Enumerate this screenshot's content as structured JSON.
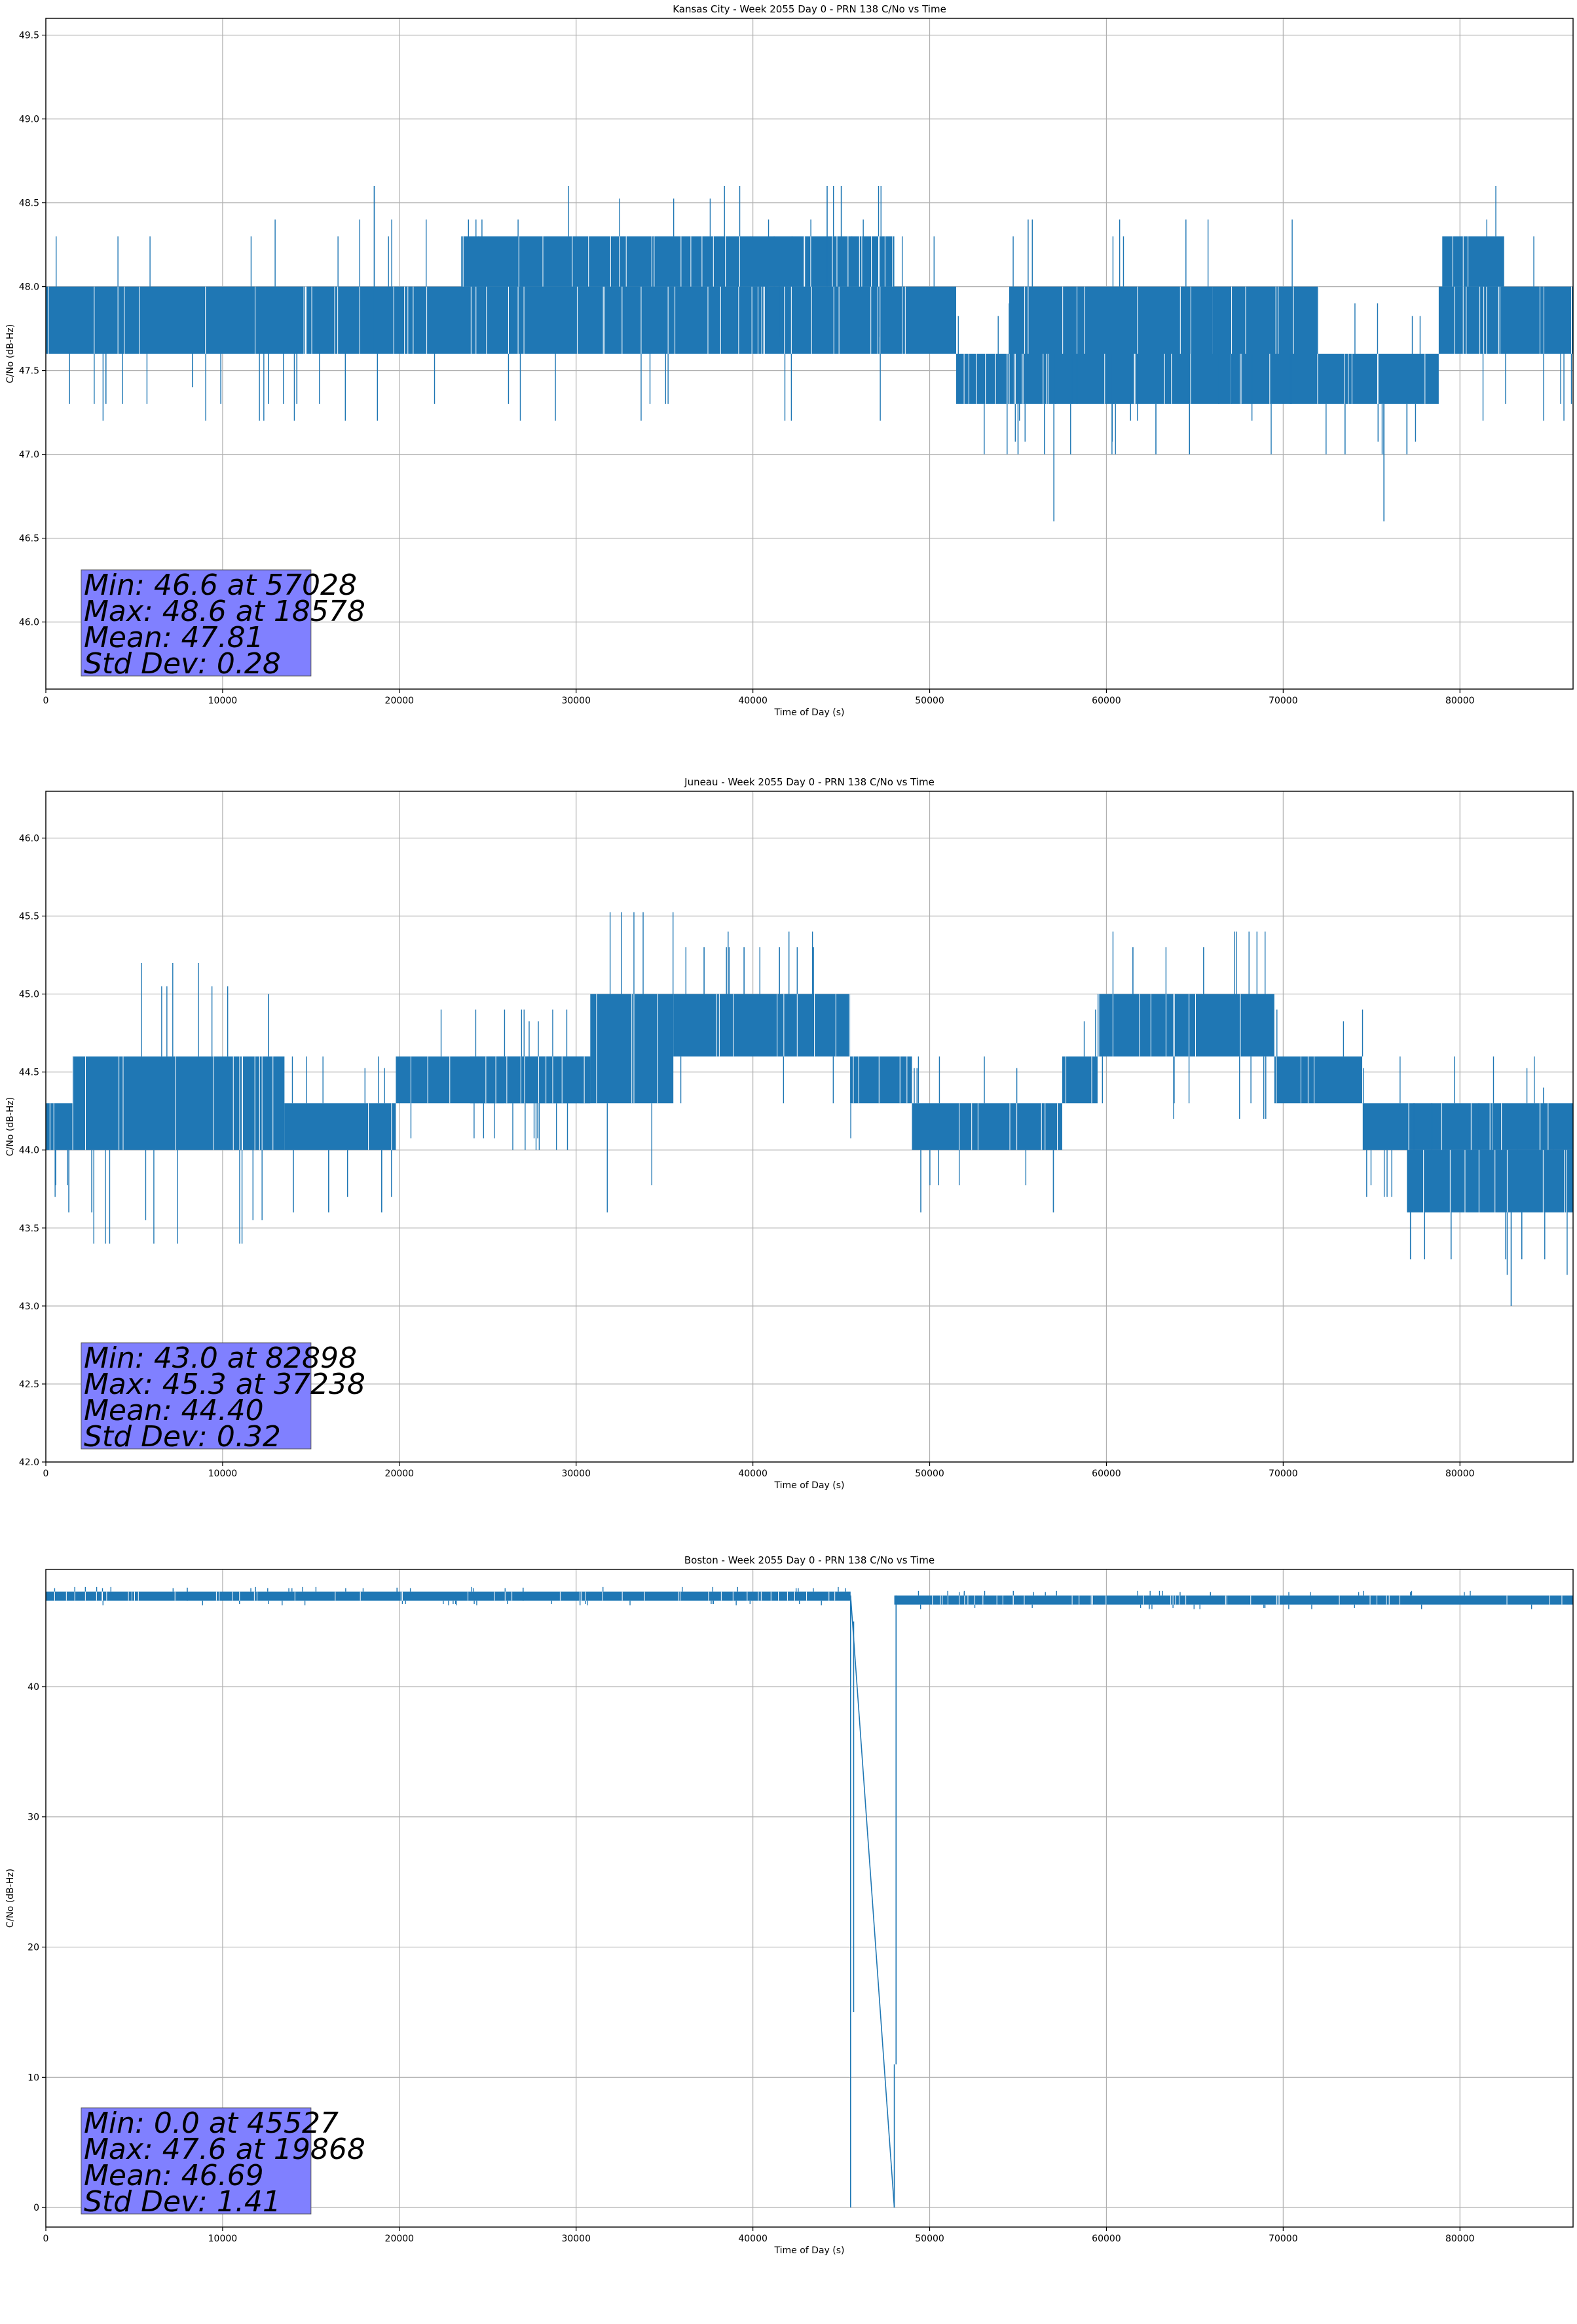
{
  "chart_data": [
    {
      "type": "line",
      "title": "Kansas City - Week 2055 Day 0 - PRN 138 C/No vs Time",
      "xlabel": "Time of Day (s)",
      "ylabel": "C/No (dB-Hz)",
      "xlim": [
        0,
        86400
      ],
      "ylim": [
        45.6,
        49.6
      ],
      "xticks": [
        0,
        10000,
        20000,
        30000,
        40000,
        50000,
        60000,
        70000,
        80000
      ],
      "yticks": [
        46.0,
        46.5,
        47.0,
        47.5,
        48.0,
        48.5,
        49.0,
        49.5
      ],
      "ytick_labels": [
        "46.0",
        "46.5",
        "47.0",
        "47.5",
        "48.0",
        "48.5",
        "49.0",
        "49.5"
      ],
      "grid": true,
      "series_color": "#1f77b4",
      "band_segments": [
        {
          "x": [
            0,
            51500
          ],
          "y": [
            47.6,
            48.0
          ]
        },
        {
          "x": [
            51500,
            78800
          ],
          "y": [
            47.3,
            47.6
          ]
        },
        {
          "x": [
            54500,
            66000
          ],
          "y": [
            47.6,
            48.0
          ]
        },
        {
          "x": [
            66000,
            72000
          ],
          "y": [
            47.6,
            48.0
          ]
        },
        {
          "x": [
            78800,
            86400
          ],
          "y": [
            47.6,
            48.0
          ]
        },
        {
          "x": [
            23500,
            48000
          ],
          "y": [
            48.0,
            48.3
          ]
        },
        {
          "x": [
            79000,
            82500
          ],
          "y": [
            48.0,
            48.3
          ]
        }
      ],
      "spikes": [
        {
          "x": 18578,
          "y": [
            47.6,
            48.6
          ]
        },
        {
          "x": 44200,
          "y": [
            48.0,
            48.6
          ]
        },
        {
          "x": 45000,
          "y": [
            48.0,
            48.6
          ]
        },
        {
          "x": 57028,
          "y": [
            47.3,
            46.6
          ]
        },
        {
          "x": 75700,
          "y": [
            47.3,
            46.6
          ]
        },
        {
          "x": 3400,
          "y": [
            47.6,
            47.3
          ]
        },
        {
          "x": 8300,
          "y": [
            47.6,
            47.4
          ]
        },
        {
          "x": 9900,
          "y": [
            47.6,
            47.3
          ]
        },
        {
          "x": 12600,
          "y": [
            47.6,
            47.3
          ]
        },
        {
          "x": 14200,
          "y": [
            47.6,
            47.3
          ]
        },
        {
          "x": 55000,
          "y": [
            47.3,
            47.0
          ]
        },
        {
          "x": 56500,
          "y": [
            47.3,
            47.0
          ]
        },
        {
          "x": 62800,
          "y": [
            47.3,
            47.0
          ]
        },
        {
          "x": 64700,
          "y": [
            47.3,
            47.0
          ]
        },
        {
          "x": 73500,
          "y": [
            47.3,
            47.0
          ]
        },
        {
          "x": 77000,
          "y": [
            47.3,
            47.0
          ]
        }
      ],
      "stats": [
        "Min: 46.6 at 57028",
        "Max: 48.6 at 18578",
        "Mean: 47.81",
        "Std Dev: 0.28"
      ]
    },
    {
      "type": "line",
      "title": "Juneau - Week 2055 Day 0 - PRN 138 C/No vs Time",
      "xlabel": "Time of Day (s)",
      "ylabel": "C/No (dB-Hz)",
      "xlim": [
        0,
        86400
      ],
      "ylim": [
        42.0,
        46.3
      ],
      "xticks": [
        0,
        10000,
        20000,
        30000,
        40000,
        50000,
        60000,
        70000,
        80000
      ],
      "yticks": [
        42.0,
        42.5,
        43.0,
        43.5,
        44.0,
        44.5,
        45.0,
        45.5,
        46.0
      ],
      "ytick_labels": [
        "42.0",
        "42.5",
        "43.0",
        "43.5",
        "44.0",
        "44.5",
        "45.0",
        "45.5",
        "46.0"
      ],
      "grid": true,
      "series_color": "#1f77b4",
      "band_segments": [
        {
          "x": [
            0,
            1500
          ],
          "y": [
            44.0,
            44.3
          ]
        },
        {
          "x": [
            1500,
            13500
          ],
          "y": [
            44.0,
            44.6
          ]
        },
        {
          "x": [
            13500,
            19800
          ],
          "y": [
            44.0,
            44.3
          ]
        },
        {
          "x": [
            19800,
            30800
          ],
          "y": [
            44.3,
            44.6
          ]
        },
        {
          "x": [
            24000,
            30800
          ],
          "y": [
            44.3,
            44.6
          ]
        },
        {
          "x": [
            30800,
            35500
          ],
          "y": [
            44.3,
            45.0
          ]
        },
        {
          "x": [
            35500,
            45500
          ],
          "y": [
            44.6,
            45.0
          ]
        },
        {
          "x": [
            45500,
            49000
          ],
          "y": [
            44.3,
            44.6
          ]
        },
        {
          "x": [
            49000,
            57500
          ],
          "y": [
            44.0,
            44.3
          ]
        },
        {
          "x": [
            57500,
            59500
          ],
          "y": [
            44.3,
            44.6
          ]
        },
        {
          "x": [
            59500,
            69500
          ],
          "y": [
            44.6,
            45.0
          ]
        },
        {
          "x": [
            69500,
            74500
          ],
          "y": [
            44.3,
            44.6
          ]
        },
        {
          "x": [
            74500,
            86400
          ],
          "y": [
            44.0,
            44.3
          ]
        },
        {
          "x": [
            77000,
            86400
          ],
          "y": [
            43.6,
            44.0
          ]
        }
      ],
      "spikes": [
        {
          "x": 12600,
          "y": [
            44.6,
            45.0
          ]
        },
        {
          "x": 37238,
          "y": [
            45.0,
            45.3
          ]
        },
        {
          "x": 39500,
          "y": [
            45.0,
            45.3
          ]
        },
        {
          "x": 41500,
          "y": [
            45.0,
            45.3
          ]
        },
        {
          "x": 61500,
          "y": [
            45.0,
            45.3
          ]
        },
        {
          "x": 65500,
          "y": [
            45.0,
            45.3
          ]
        },
        {
          "x": 1300,
          "y": [
            44.0,
            43.6
          ]
        },
        {
          "x": 2600,
          "y": [
            44.0,
            43.6
          ]
        },
        {
          "x": 14000,
          "y": [
            44.0,
            43.6
          ]
        },
        {
          "x": 16000,
          "y": [
            44.0,
            43.6
          ]
        },
        {
          "x": 19000,
          "y": [
            44.0,
            43.6
          ]
        },
        {
          "x": 49500,
          "y": [
            44.0,
            43.6
          ]
        },
        {
          "x": 57000,
          "y": [
            44.0,
            43.6
          ]
        },
        {
          "x": 77200,
          "y": [
            43.6,
            43.3
          ]
        },
        {
          "x": 78000,
          "y": [
            43.6,
            43.3
          ]
        },
        {
          "x": 79500,
          "y": [
            43.6,
            43.3
          ]
        },
        {
          "x": 82898,
          "y": [
            43.6,
            43.0
          ]
        },
        {
          "x": 83500,
          "y": [
            43.6,
            43.3
          ]
        }
      ],
      "stats": [
        "Min: 43.0 at 82898",
        "Max: 45.3 at 37238",
        "Mean: 44.40",
        "Std Dev: 0.32"
      ]
    },
    {
      "type": "line",
      "title": "Boston - Week 2055 Day 0 - PRN 138 C/No vs Time",
      "xlabel": "Time of Day (s)",
      "ylabel": "C/No (dB-Hz)",
      "xlim": [
        0,
        86400
      ],
      "ylim": [
        -1.5,
        49.0
      ],
      "xticks": [
        0,
        10000,
        20000,
        30000,
        40000,
        50000,
        60000,
        70000,
        80000
      ],
      "yticks": [
        0,
        10,
        20,
        30,
        40
      ],
      "ytick_labels": [
        "0",
        "10",
        "20",
        "30",
        "40"
      ],
      "grid": true,
      "series_color": "#1f77b4",
      "band_segments": [
        {
          "x": [
            0,
            45527
          ],
          "y": [
            46.6,
            47.3
          ]
        },
        {
          "x": [
            48000,
            86400
          ],
          "y": [
            46.3,
            47.0
          ]
        }
      ],
      "spikes": [
        {
          "x": 19868,
          "y": [
            47.0,
            47.6
          ]
        },
        {
          "x": 8000,
          "y": [
            46.6,
            47.6
          ]
        },
        {
          "x": 27000,
          "y": [
            46.6,
            47.6
          ]
        },
        {
          "x": 45527,
          "y": [
            47.0,
            0.0
          ]
        },
        {
          "x": 45700,
          "y": [
            45.0,
            15.0
          ]
        },
        {
          "x": 48000,
          "y": [
            0.0,
            11.0
          ]
        },
        {
          "x": 48100,
          "y": [
            11.0,
            47.0
          ]
        }
      ],
      "lines": [
        {
          "x": [
            45527,
            48000
          ],
          "y": [
            47.0,
            0.0
          ]
        }
      ],
      "stats": [
        "Min: 0.0 at 45527",
        "Max: 47.6 at 19868",
        "Mean: 46.69",
        "Std Dev: 1.41"
      ]
    }
  ]
}
